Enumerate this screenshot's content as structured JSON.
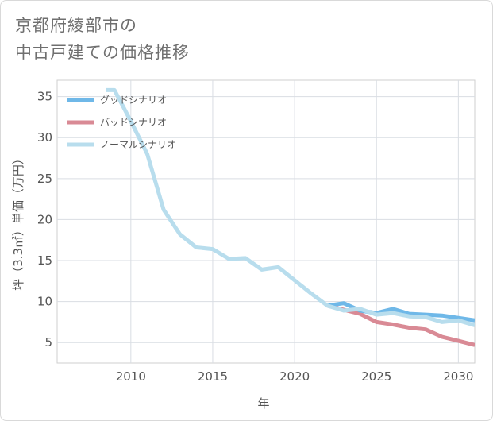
{
  "title_lines": [
    "京都府綾部市の",
    "中古戸建ての価格推移"
  ],
  "chart_data": {
    "type": "line",
    "xlabel": "年",
    "ylabel": "坪（3.3㎡）単価（万円）",
    "xlim": [
      2005.5,
      2031
    ],
    "ylim": [
      2.5,
      37
    ],
    "x_ticks": [
      2010,
      2015,
      2020,
      2025,
      2030
    ],
    "y_ticks": [
      5,
      10,
      15,
      20,
      25,
      30,
      35
    ],
    "grid": true,
    "legend_position": "top-left",
    "series": [
      {
        "name": "グッドシナリオ",
        "color": "#6fb8e8",
        "x": [
          2022,
          2023,
          2024,
          2025,
          2026,
          2027,
          2028,
          2029,
          2030,
          2031
        ],
        "y": [
          9.5,
          9.8,
          8.9,
          8.6,
          9.1,
          8.5,
          8.4,
          8.3,
          8.0,
          7.7
        ]
      },
      {
        "name": "バッドシナリオ",
        "color": "#d98a95",
        "x": [
          2022,
          2023,
          2024,
          2025,
          2026,
          2027,
          2028,
          2029,
          2030,
          2031
        ],
        "y": [
          9.5,
          9.0,
          8.5,
          7.5,
          7.2,
          6.8,
          6.6,
          5.7,
          5.2,
          4.7
        ]
      },
      {
        "name": "ノーマルシナリオ",
        "color": "#b8dded",
        "x": [
          2008.5,
          2009,
          2010,
          2011,
          2012,
          2013,
          2014,
          2015,
          2016,
          2017,
          2018,
          2019,
          2020,
          2021,
          2022,
          2023,
          2024,
          2025,
          2026,
          2027,
          2028,
          2029,
          2030,
          2031
        ],
        "y": [
          35.8,
          35.8,
          32.0,
          28.0,
          21.2,
          18.2,
          16.6,
          16.4,
          15.2,
          15.3,
          13.9,
          14.2,
          12.6,
          11.0,
          9.5,
          8.9,
          9.1,
          8.4,
          8.6,
          8.2,
          8.1,
          7.5,
          7.7,
          7.1
        ]
      }
    ]
  }
}
